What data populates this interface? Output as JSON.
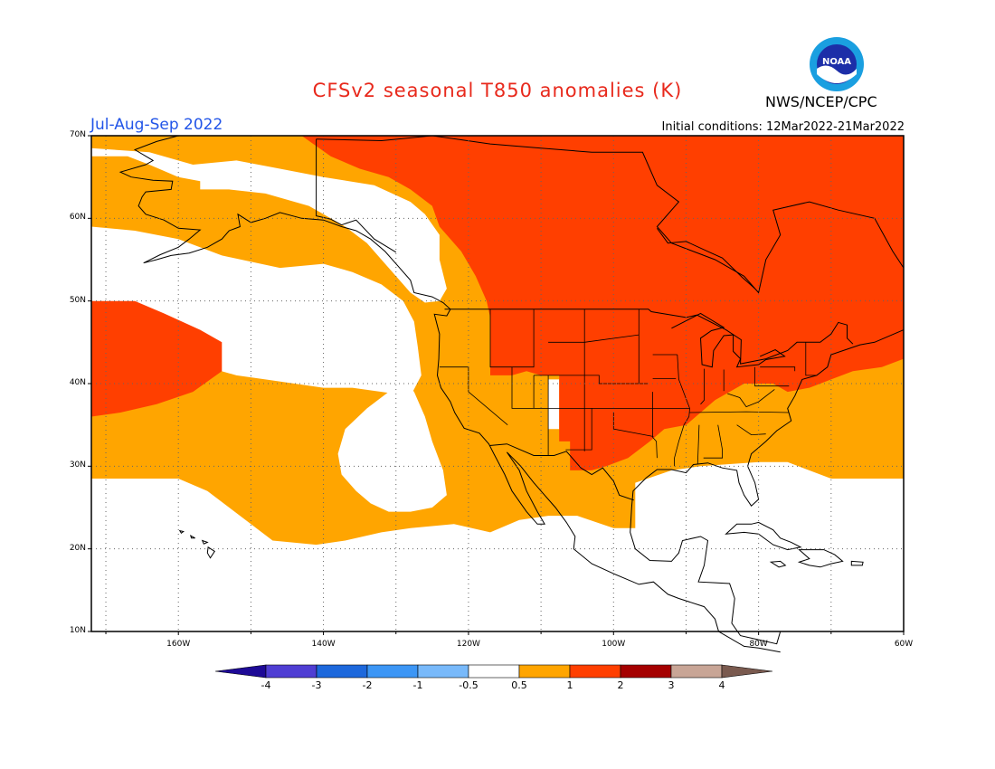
{
  "header": {
    "title": "CFSv2 seasonal T850 anomalies (K)",
    "period": "Jul-Aug-Sep 2022",
    "agency": "NWS/NCEP/CPC",
    "initial_conditions": "Initial conditions: 12Mar2022-21Mar2022",
    "logo_text": "NOAA"
  },
  "map": {
    "lon_range": [
      -172,
      -60
    ],
    "lat_range": [
      10,
      70
    ],
    "lat_ticks": [
      {
        "value": 70,
        "label": "70N"
      },
      {
        "value": 60,
        "label": "60N"
      },
      {
        "value": 50,
        "label": "50N"
      },
      {
        "value": 40,
        "label": "40N"
      },
      {
        "value": 30,
        "label": "30N"
      },
      {
        "value": 20,
        "label": "20N"
      },
      {
        "value": 10,
        "label": "10N"
      }
    ],
    "lon_ticks": [
      {
        "value": -160,
        "label": "160W"
      },
      {
        "value": -140,
        "label": "140W"
      },
      {
        "value": -120,
        "label": "120W"
      },
      {
        "value": -100,
        "label": "100W"
      },
      {
        "value": -80,
        "label": "80W"
      },
      {
        "value": -60,
        "label": "60W"
      }
    ],
    "colors": {
      "above_0_5": "#ffa500",
      "above_1": "#ff3f00",
      "below_0_5": "#ffffff"
    }
  },
  "colorbar": {
    "labels": [
      "-4",
      "-3",
      "-2",
      "-1",
      "-0.5",
      "0.5",
      "1",
      "2",
      "3",
      "4"
    ],
    "colors": [
      "#1e0a96",
      "#4f3ed3",
      "#1d68dc",
      "#3c96f5",
      "#78b9fa",
      "#ffffff",
      "#ffa500",
      "#ff3f00",
      "#a50000",
      "#c8a596",
      "#7a5a4f"
    ]
  }
}
